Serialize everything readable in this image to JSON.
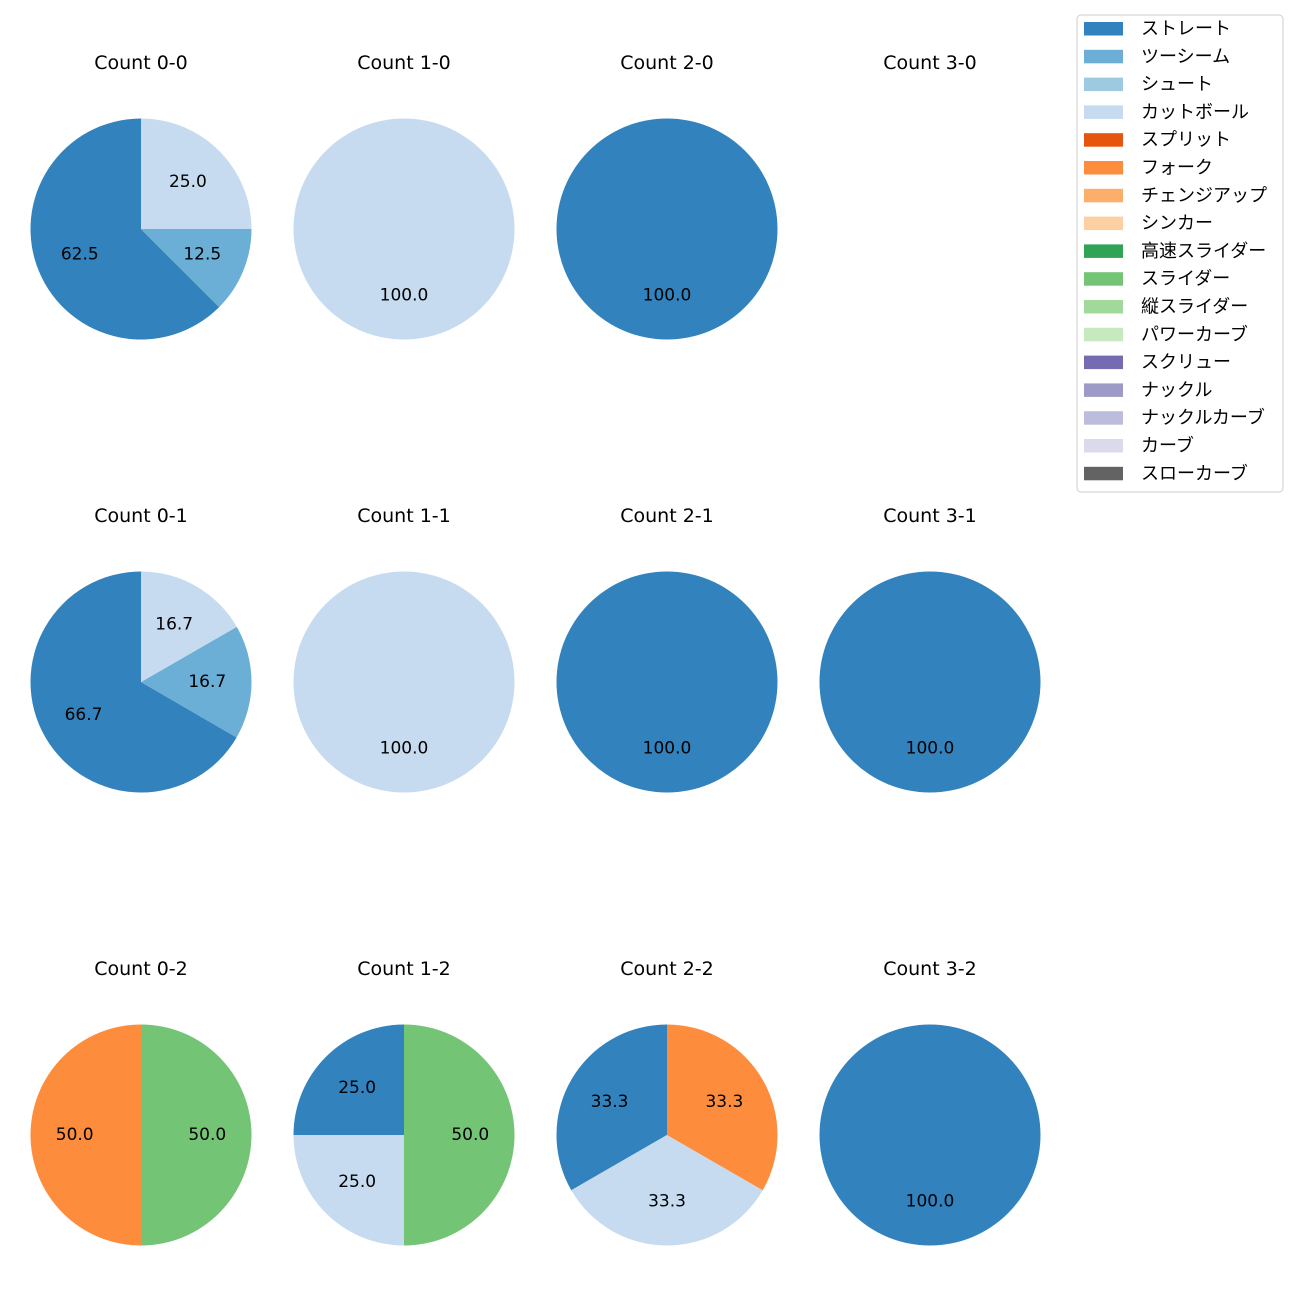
{
  "chart_data": {
    "type": "pie",
    "pitch_types": [
      {
        "name": "ストレート",
        "color": "#3182bd"
      },
      {
        "name": "ツーシーム",
        "color": "#6baed6"
      },
      {
        "name": "シュート",
        "color": "#9ecae1"
      },
      {
        "name": "カットボール",
        "color": "#c6dbef"
      },
      {
        "name": "スプリット",
        "color": "#e6550d"
      },
      {
        "name": "フォーク",
        "color": "#fd8d3c"
      },
      {
        "name": "チェンジアップ",
        "color": "#fdae6b"
      },
      {
        "name": "シンカー",
        "color": "#fdd0a2"
      },
      {
        "name": "高速スライダー",
        "color": "#31a354"
      },
      {
        "name": "スライダー",
        "color": "#74c476"
      },
      {
        "name": "縦スライダー",
        "color": "#a1d99b"
      },
      {
        "name": "パワーカーブ",
        "color": "#c7e9c0"
      },
      {
        "name": "スクリュー",
        "color": "#756bb1"
      },
      {
        "name": "ナックル",
        "color": "#9e9ac8"
      },
      {
        "name": "ナックルカーブ",
        "color": "#bcbddc"
      },
      {
        "name": "カーブ",
        "color": "#dadaeb"
      },
      {
        "name": "スローカーブ",
        "color": "#636363"
      }
    ],
    "legend_position": "top-right",
    "pies": [
      {
        "title": "Count 0-0",
        "slices": [
          {
            "pitch": "ストレート",
            "value": 62.5,
            "label": "62.5"
          },
          {
            "pitch": "ツーシーム",
            "value": 12.5,
            "label": "12.5"
          },
          {
            "pitch": "カットボール",
            "value": 25.0,
            "label": "25.0"
          }
        ]
      },
      {
        "title": "Count 1-0",
        "slices": [
          {
            "pitch": "カットボール",
            "value": 100.0,
            "label": "100.0"
          }
        ]
      },
      {
        "title": "Count 2-0",
        "slices": [
          {
            "pitch": "ストレート",
            "value": 100.0,
            "label": "100.0"
          }
        ]
      },
      {
        "title": "Count 3-0",
        "slices": []
      },
      {
        "title": "Count 0-1",
        "slices": [
          {
            "pitch": "ストレート",
            "value": 66.7,
            "label": "66.7"
          },
          {
            "pitch": "ツーシーム",
            "value": 16.7,
            "label": "16.7"
          },
          {
            "pitch": "カットボール",
            "value": 16.7,
            "label": "16.7"
          }
        ]
      },
      {
        "title": "Count 1-1",
        "slices": [
          {
            "pitch": "カットボール",
            "value": 100.0,
            "label": "100.0"
          }
        ]
      },
      {
        "title": "Count 2-1",
        "slices": [
          {
            "pitch": "ストレート",
            "value": 100.0,
            "label": "100.0"
          }
        ]
      },
      {
        "title": "Count 3-1",
        "slices": [
          {
            "pitch": "ストレート",
            "value": 100.0,
            "label": "100.0"
          }
        ]
      },
      {
        "title": "Count 0-2",
        "slices": [
          {
            "pitch": "フォーク",
            "value": 50.0,
            "label": "50.0"
          },
          {
            "pitch": "スライダー",
            "value": 50.0,
            "label": "50.0"
          }
        ]
      },
      {
        "title": "Count 1-2",
        "slices": [
          {
            "pitch": "ストレート",
            "value": 25.0,
            "label": "25.0"
          },
          {
            "pitch": "カットボール",
            "value": 25.0,
            "label": "25.0"
          },
          {
            "pitch": "スライダー",
            "value": 50.0,
            "label": "50.0"
          }
        ]
      },
      {
        "title": "Count 2-2",
        "slices": [
          {
            "pitch": "ストレート",
            "value": 33.3,
            "label": "33.3"
          },
          {
            "pitch": "カットボール",
            "value": 33.3,
            "label": "33.3"
          },
          {
            "pitch": "フォーク",
            "value": 33.3,
            "label": "33.3"
          }
        ]
      },
      {
        "title": "Count 3-2",
        "slices": [
          {
            "pitch": "ストレート",
            "value": 100.0,
            "label": "100.0"
          }
        ]
      }
    ]
  }
}
